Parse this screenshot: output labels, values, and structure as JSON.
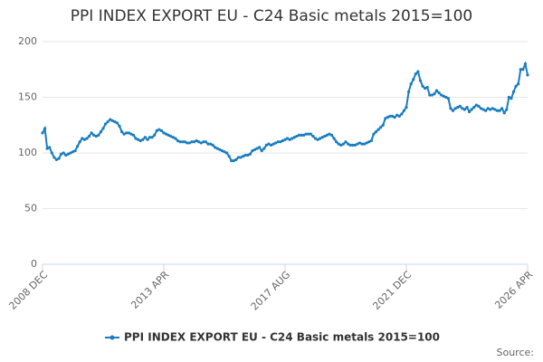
{
  "chart_data": {
    "type": "line",
    "title": "PPI INDEX EXPORT EU - C24 Basic metals 2015=100",
    "source": "Source:",
    "categories": [
      "2008 DEC",
      null,
      null,
      null,
      null,
      null,
      null,
      null,
      null,
      null,
      null,
      null,
      null,
      null,
      null,
      null,
      null,
      null,
      null,
      null,
      null,
      null,
      null,
      null,
      null,
      null,
      null,
      null,
      null,
      null,
      null,
      null,
      null,
      null,
      null,
      null,
      null,
      null,
      null,
      null,
      null,
      null,
      null,
      null,
      null,
      null,
      null,
      null,
      null,
      null,
      null,
      null,
      "2013 APR",
      null,
      null,
      null,
      null,
      null,
      null,
      null,
      null,
      null,
      null,
      null,
      null,
      null,
      null,
      null,
      null,
      null,
      null,
      null,
      null,
      null,
      null,
      null,
      null,
      null,
      null,
      null,
      null,
      null,
      null,
      null,
      null,
      null,
      null,
      null,
      null,
      null,
      null,
      null,
      null,
      null,
      null,
      null,
      null,
      null,
      null,
      null,
      null,
      null,
      null,
      null,
      "2017 AUG",
      null,
      null,
      null,
      null,
      null,
      null,
      null,
      null,
      null,
      null,
      null,
      null,
      null,
      null,
      null,
      null,
      null,
      null,
      null,
      null,
      null,
      null,
      null,
      null,
      null,
      null,
      null,
      null,
      null,
      null,
      null,
      null,
      null,
      null,
      null,
      null,
      null,
      null,
      null,
      null,
      null,
      null,
      null,
      null,
      null,
      null,
      null,
      null,
      null,
      null,
      null,
      "2021 DEC",
      null,
      null,
      null,
      null,
      null,
      null,
      null,
      null,
      null,
      null,
      null,
      null,
      null,
      null,
      null,
      null,
      null,
      null,
      null,
      null,
      null,
      null,
      null,
      null,
      null,
      null,
      null,
      null,
      null,
      null,
      null,
      null,
      null,
      null,
      null,
      null,
      null,
      null,
      null,
      null,
      null,
      null,
      null,
      null,
      null,
      null,
      null,
      null,
      null,
      null,
      null,
      "2026 APR"
    ],
    "series": [
      {
        "name": "PPI INDEX EXPORT EU - C24 Basic metals 2015=100",
        "color": "#1a7dbf",
        "values": [
          118,
          122,
          104,
          105,
          100,
          96,
          94,
          95,
          99,
          100,
          98,
          99,
          100,
          101,
          102,
          106,
          110,
          113,
          112,
          113,
          115,
          118,
          116,
          115,
          116,
          119,
          122,
          126,
          128,
          130,
          129,
          128,
          127,
          124,
          119,
          117,
          118,
          118,
          117,
          116,
          113,
          112,
          111,
          112,
          114,
          112,
          114,
          114,
          116,
          120,
          121,
          120,
          118,
          117,
          116,
          115,
          114,
          113,
          111,
          110,
          110,
          110,
          109,
          109,
          110,
          110,
          111,
          110,
          109,
          110,
          110,
          108,
          108,
          107,
          105,
          104,
          103,
          102,
          101,
          100,
          97,
          93,
          93,
          94,
          96,
          96,
          97,
          98,
          98,
          99,
          102,
          103,
          104,
          105,
          102,
          104,
          107,
          108,
          107,
          108,
          109,
          110,
          110,
          111,
          112,
          113,
          112,
          113,
          114,
          115,
          116,
          116,
          116,
          117,
          117,
          117,
          115,
          113,
          112,
          113,
          114,
          115,
          116,
          117,
          116,
          113,
          110,
          108,
          107,
          108,
          110,
          108,
          107,
          107,
          107,
          108,
          109,
          108,
          108,
          109,
          110,
          111,
          117,
          119,
          121,
          123,
          125,
          131,
          132,
          133,
          133,
          132,
          134,
          133,
          135,
          138,
          141,
          155,
          162,
          166,
          171,
          173,
          165,
          160,
          158,
          159,
          152,
          152,
          153,
          156,
          154,
          152,
          151,
          150,
          149,
          140,
          138,
          140,
          141,
          142,
          140,
          139,
          141,
          137,
          139,
          141,
          143,
          142,
          140,
          139,
          138,
          140,
          139,
          140,
          139,
          138,
          138,
          140,
          136,
          139,
          150,
          149,
          155,
          160,
          162,
          175,
          175,
          180,
          170
        ]
      }
    ],
    "ylim": [
      0,
      200
    ],
    "yticks": [
      0,
      50,
      100,
      150,
      200
    ],
    "grid": true
  }
}
